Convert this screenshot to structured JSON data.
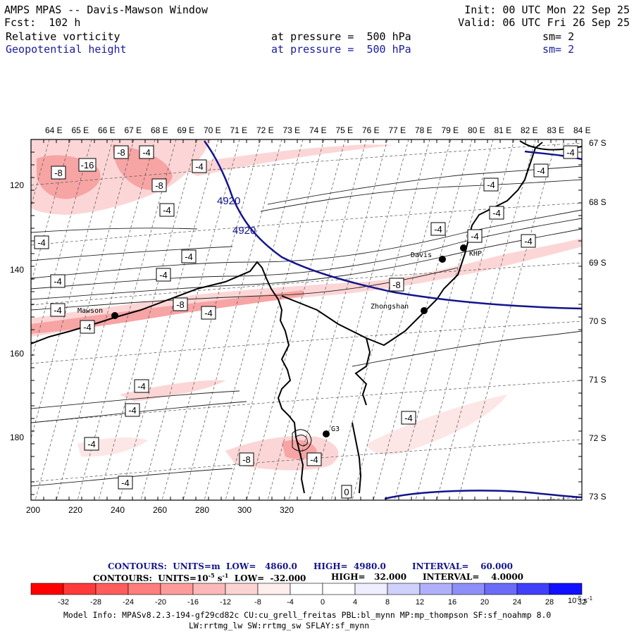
{
  "header": {
    "left_line1": "AMPS MPAS -- Davis-Mawson Window",
    "left_line2": "Fcst:  102 h",
    "init": "Init: 00 UTC Mon 22 Sep 25",
    "valid": "Valid: 06 UTC Fri 26 Sep 25",
    "field1_name": "Relative vorticity",
    "field1_level": "at pressure =  500 hPa",
    "field1_sm": "sm= 2",
    "field2_name": "Geopotential height",
    "field2_level": "at pressure =  500 hPa",
    "field2_sm": "sm= 2"
  },
  "colors": {
    "height_contour": "#14148c",
    "vort_neg_strong": "#ff3333",
    "vort_neg_light": "#fbd6d6",
    "coast": "#000000"
  },
  "axes": {
    "top_lon_labels": [
      "64 E",
      "65 E",
      "66 E",
      "67 E",
      "68 E",
      "69 E",
      "70 E",
      "71 E",
      "72 E",
      "73 E",
      "74 E",
      "75 E",
      "76 E",
      "77 E",
      "78 E",
      "79 E",
      "80 E",
      "81 E",
      "82 E",
      "83 E",
      "84 E"
    ],
    "right_lat_labels": [
      "67 S",
      "68 S",
      "69 S",
      "70 S",
      "71 S",
      "72 S",
      "73 S"
    ],
    "bottom_grid_labels": [
      "200",
      "220",
      "240",
      "260",
      "280",
      "300",
      "320"
    ],
    "left_grid_labels": [
      "120",
      "140",
      "160",
      "180"
    ]
  },
  "stations": [
    {
      "name": "Davis"
    },
    {
      "name": "KHP"
    },
    {
      "name": "Zhongshan"
    },
    {
      "name": "Mawson"
    },
    {
      "name": "G3"
    }
  ],
  "contour_labels": {
    "height": [
      "4920",
      "4920"
    ],
    "vorticity": [
      "-8",
      "-4",
      "-16",
      "-8",
      "-4",
      "-8",
      "-4",
      "-4",
      "-4",
      "-4",
      "-4",
      "-4",
      "-4",
      "-4",
      "-4",
      "-4",
      "-4",
      "-8",
      "-4",
      "-4",
      "-8",
      "-4",
      "-4",
      "-4",
      "-4",
      "-4",
      "-4",
      "-8",
      "-4",
      "-4",
      "0"
    ]
  },
  "footer": {
    "line1_a": "CONTOURS:  UNITS=m  LOW=   4860.0",
    "line1_b": "HIGH=  4980.0",
    "line1_c": "INTERVAL=    60.000",
    "line2_a": "CONTOURS:  UNITS=10",
    "line2_sup": "-5",
    "line2_b": " s",
    "line2_sup2": "-1",
    "line2_c": "  LOW=  -32.000",
    "line2_d": "HIGH=   32.000",
    "line2_e": "INTERVAL=    4.0000"
  },
  "colorbar": {
    "labels": [
      "-32",
      "-28",
      "-24",
      "-20",
      "-16",
      "-12",
      "-8",
      "-4",
      "0",
      "4",
      "8",
      "12",
      "16",
      "20",
      "24",
      "28",
      "32"
    ],
    "unit": "10",
    "unit_sup": "-5",
    "unit_b": " s",
    "unit_sup2": "-1",
    "colors": [
      "#ff0000",
      "#ff3a3a",
      "#ff5c5c",
      "#ff7d7d",
      "#fd9b9b",
      "#fbb8b8",
      "#fcd3d3",
      "#feeeee",
      "#ffffff",
      "#ffffff",
      "#eeeefe",
      "#d0d0fc",
      "#b0b0fa",
      "#8e8ef9",
      "#6b6bf9",
      "#4040fb",
      "#1010ff"
    ]
  },
  "model_info": {
    "line1": "Model Info: MPASv8.2.3-194-gf29cd82c CU:cu_grell_freitas PBL:bl_mynn MP:mp_thompson SF:sf_noahmp 8.0",
    "line2": "LW:rrtmg_lw SW:rrtmg_sw SFLAY:sf_mynn"
  }
}
